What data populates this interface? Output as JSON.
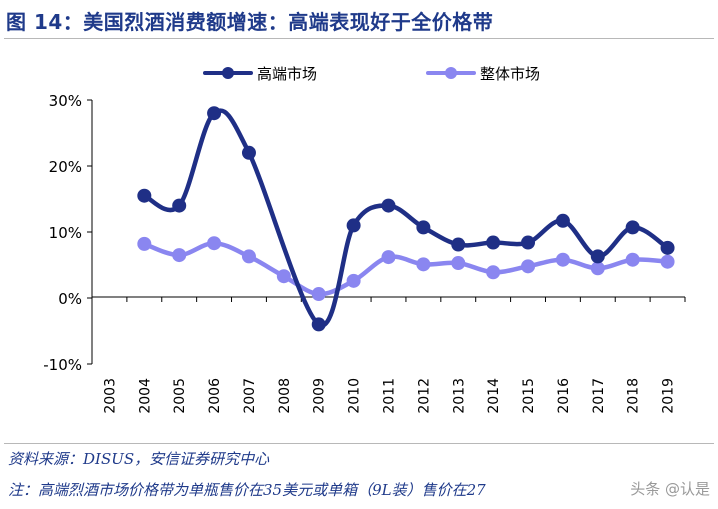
{
  "header": {
    "title": "图 14：美国烈酒消费额增速：高端表现好于全价格带"
  },
  "footer": {
    "source": "资料来源：DISUS，安信证券研究中心",
    "note": "注：高端烈酒市场价格带为单瓶售价在35美元或单箱（9L装）售价在27",
    "watermark": "头条 @认是"
  },
  "chart_data": {
    "type": "line",
    "categories": [
      "2003",
      "2004",
      "2005",
      "2006",
      "2007",
      "2008",
      "2009",
      "2010",
      "2011",
      "2012",
      "2013",
      "2014",
      "2015",
      "2016",
      "2017",
      "2018",
      "2019"
    ],
    "series": [
      {
        "name": "高端市场",
        "color": "#1f2f86",
        "values": [
          null,
          15.5,
          14.0,
          28.0,
          22.0,
          null,
          -4.0,
          11.0,
          14.0,
          10.7,
          8.1,
          8.4,
          8.4,
          11.7,
          6.3,
          10.7,
          7.6
        ]
      },
      {
        "name": "整体市场",
        "color": "#8a86f0",
        "values": [
          null,
          8.2,
          6.5,
          8.3,
          6.3,
          3.3,
          0.6,
          2.6,
          6.2,
          5.1,
          5.3,
          3.9,
          4.8,
          5.8,
          4.5,
          5.8,
          5.5
        ]
      }
    ],
    "yticks": [
      "30%",
      "20%",
      "10%",
      "0%",
      "-10%"
    ],
    "ylim": [
      -10,
      30
    ],
    "legend_position": "top",
    "grid": false
  }
}
